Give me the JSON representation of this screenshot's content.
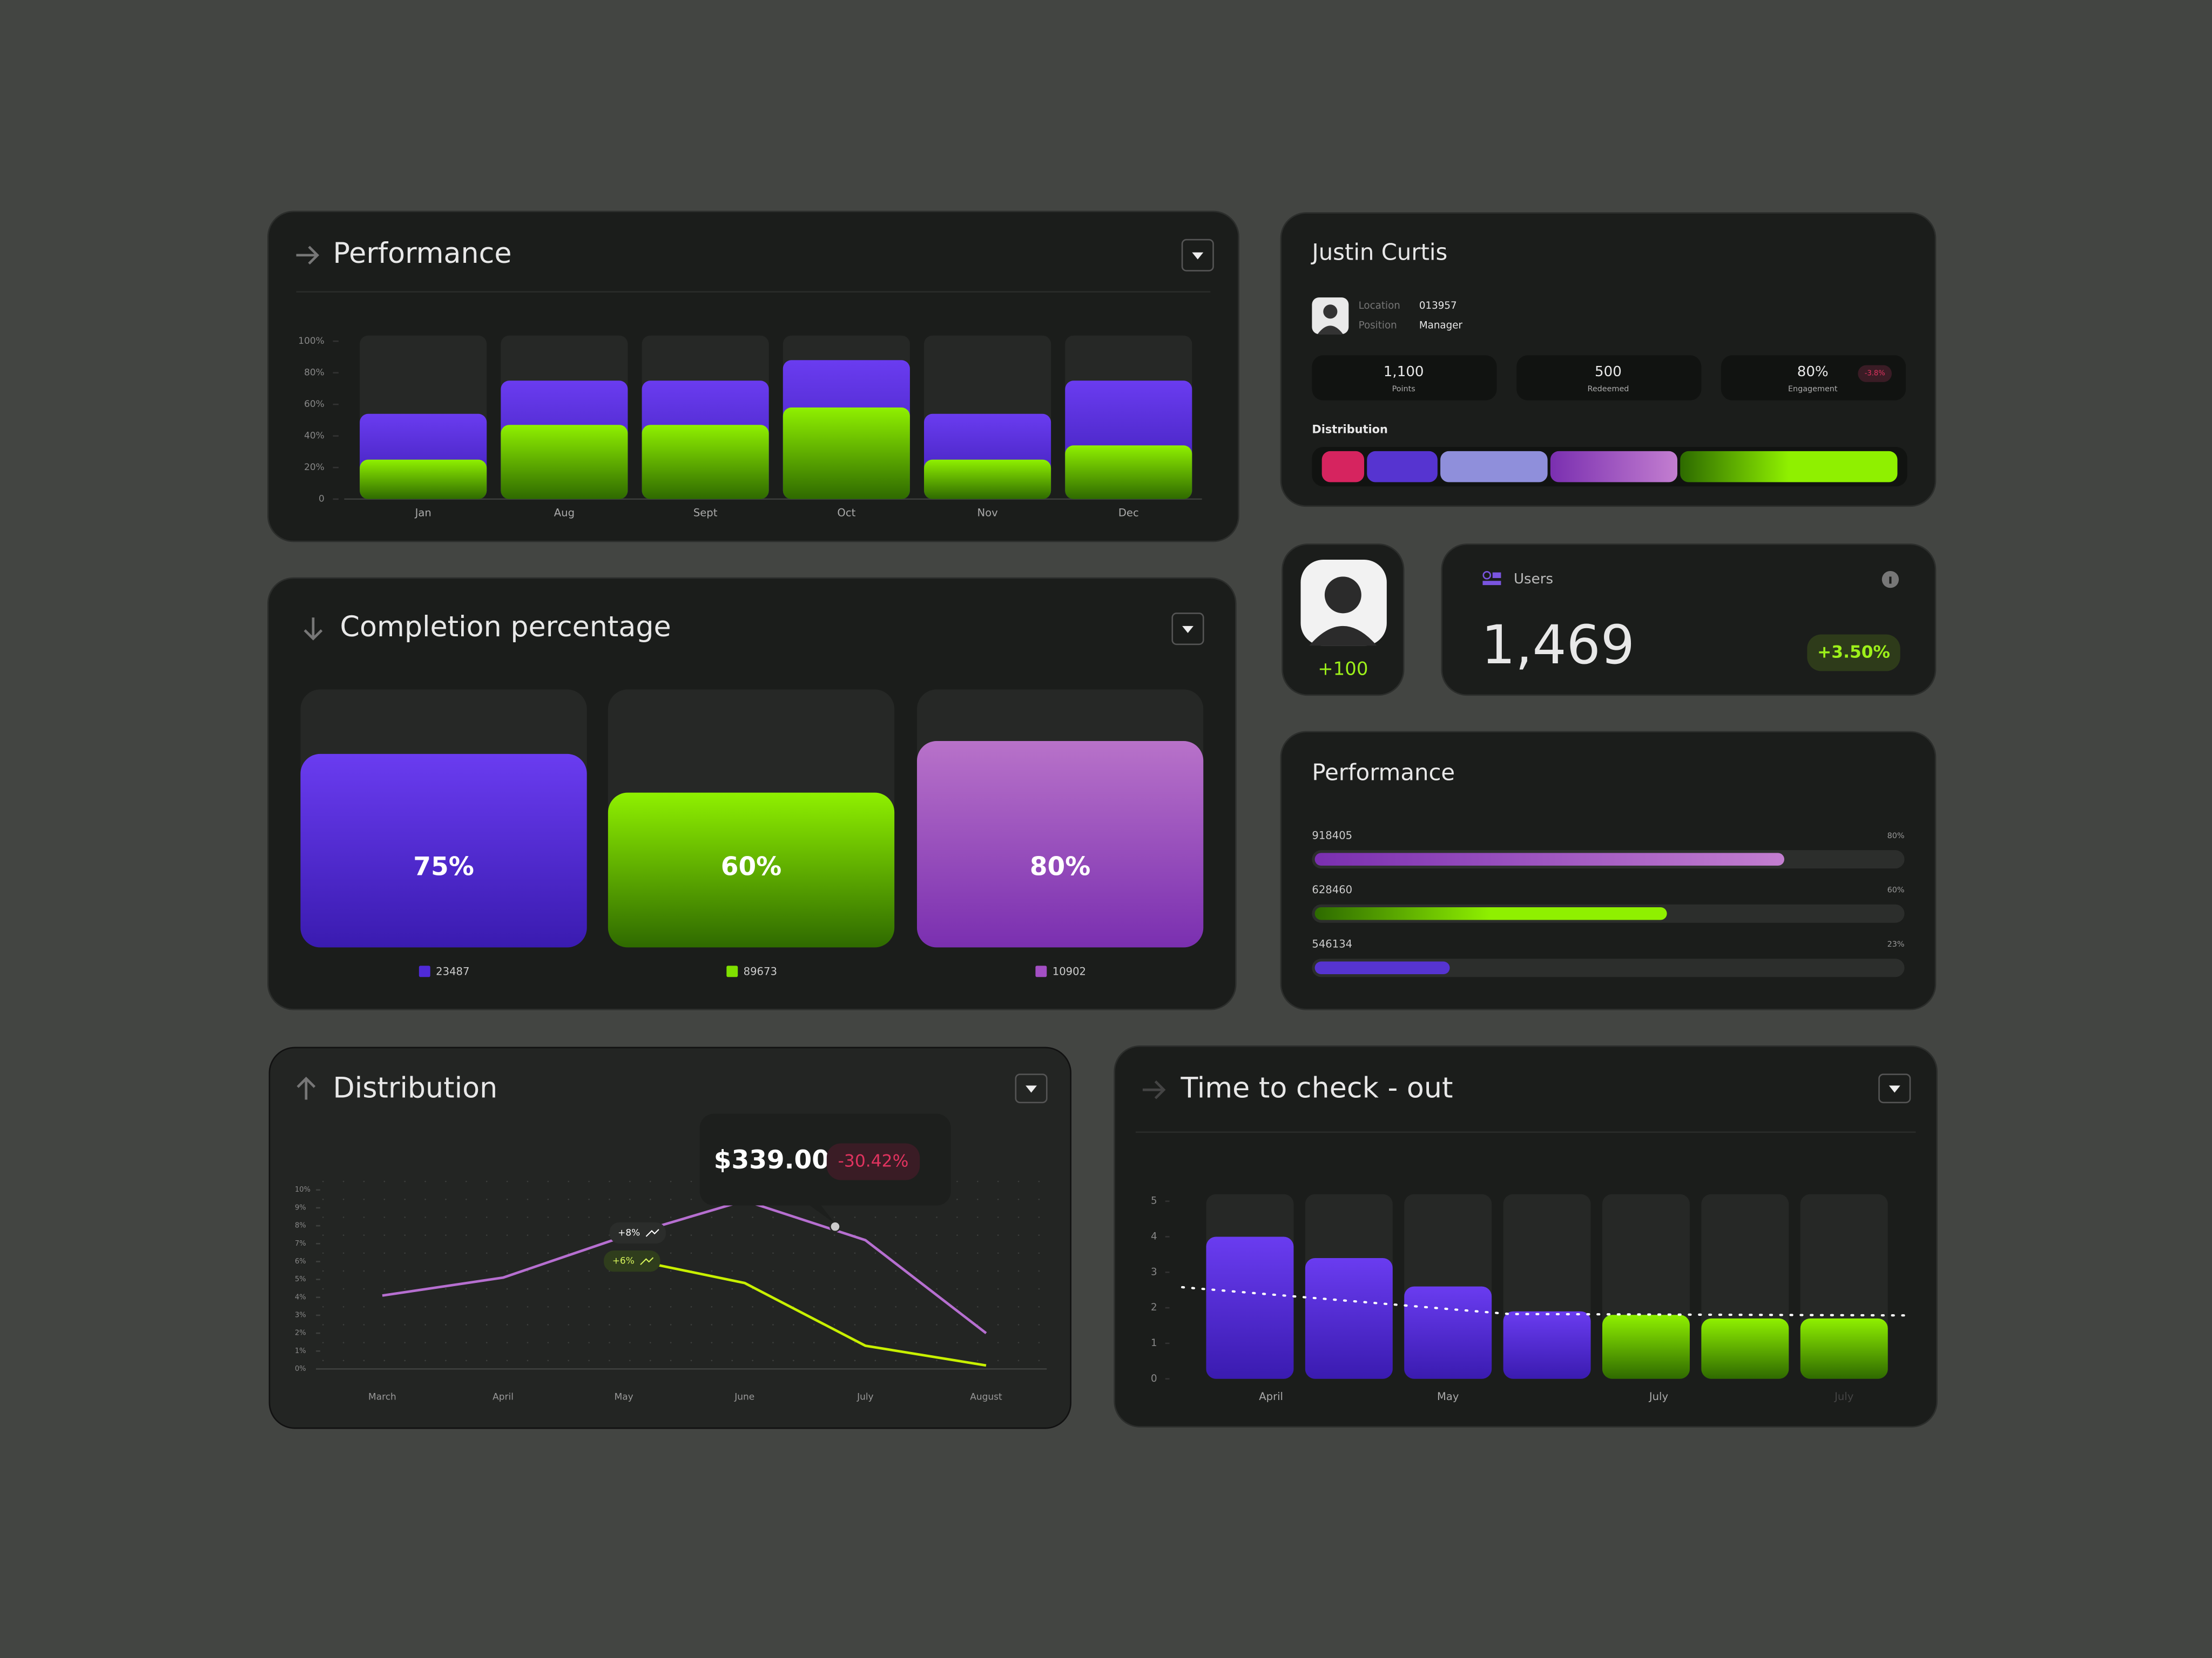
{
  "performance_chart": {
    "type": "bar",
    "title": "Performance",
    "categories": [
      "Jan",
      "Aug",
      "Sept",
      "Oct",
      "Nov",
      "Dec"
    ],
    "series": [
      {
        "color": "#5b37d6",
        "values": [
          54,
          75,
          75,
          88,
          54,
          75
        ]
      },
      {
        "color": "#7fe000",
        "values": [
          25,
          47,
          47,
          58,
          25,
          34
        ]
      }
    ],
    "ylim": [
      0,
      100
    ],
    "yticks": [
      0,
      {
        "value": 20,
        "label": "20%"
      },
      {
        "value": 40,
        "label": "40%"
      },
      {
        "value": 60,
        "label": "60%"
      },
      {
        "value": 80,
        "label": "80%"
      },
      {
        "value": 100,
        "label": "100%"
      }
    ]
  },
  "profile": {
    "name": "Justin Curtis",
    "fields": [
      {
        "label": "Location",
        "value": "013957"
      },
      {
        "label": "Position",
        "value": "Manager"
      }
    ],
    "stats": [
      {
        "value": "1,100",
        "label": "Points"
      },
      {
        "value": "500",
        "label": "Redeemed"
      },
      {
        "value": "80%",
        "label": "Engagement",
        "badge": "-3.8%"
      }
    ],
    "distribution_label": "Distribution"
  },
  "avatar_badge": "+100",
  "users": {
    "label": "Users",
    "value": "1,469",
    "change": "+3.50%"
  },
  "performance_list": {
    "title": "Performance",
    "rows": [
      {
        "label": "918405",
        "value": 80,
        "value_label": "80%",
        "color": "#a259d9"
      },
      {
        "label": "628460",
        "value": 60,
        "value_label": "60%",
        "color": "#7fe000"
      },
      {
        "label": "546134",
        "value": 23,
        "value_label": "23%",
        "color": "#5634d0"
      }
    ]
  },
  "completion": {
    "type": "bar",
    "title": "Completion percentage",
    "values": [
      75,
      60,
      80
    ],
    "value_labels": [
      "75%",
      "60%",
      "80%"
    ],
    "legend": [
      "23487",
      "89673",
      "10902"
    ],
    "colors": [
      "#4f2ad8",
      "#7fe000",
      "#a34fc4"
    ],
    "ylim": [
      0,
      100
    ]
  },
  "distribution": {
    "type": "line",
    "title": "Distribution",
    "categories": [
      "March",
      "April",
      "May",
      "June",
      "July",
      "August"
    ],
    "series": [
      {
        "color": "#b66fd0",
        "values": [
          4.1,
          5.1,
          7.4,
          9.4,
          7.2,
          2.0
        ]
      },
      {
        "color": "#c8f000",
        "values": [
          null,
          null,
          6.2,
          4.8,
          1.3,
          0.2
        ]
      }
    ],
    "ylim": [
      0,
      10
    ],
    "yticks": [
      {
        "value": 0,
        "label": "0%"
      },
      {
        "value": 1,
        "label": "1%"
      },
      {
        "value": 2,
        "label": "2%"
      },
      {
        "value": 3,
        "label": "3%"
      },
      {
        "value": 4,
        "label": "4%"
      },
      {
        "value": 5,
        "label": "5%"
      },
      {
        "value": 6,
        "label": "6%"
      },
      {
        "value": 7,
        "label": "7%"
      },
      {
        "value": 8,
        "label": "8%"
      },
      {
        "value": 9,
        "label": "9%"
      },
      {
        "value": 10,
        "label": "10%"
      }
    ],
    "tooltip": {
      "value": "$339.00",
      "change": "-30.42%"
    },
    "badges": [
      "+8%",
      "+6%"
    ]
  },
  "checkout": {
    "type": "bar",
    "title": "Time to check - out",
    "categories": [
      "April",
      null,
      "May",
      null,
      "July",
      null,
      "July"
    ],
    "values": [
      4.0,
      3.4,
      2.6,
      1.9,
      1.8,
      1.7,
      1.7
    ],
    "colors": [
      "#5b2cf0",
      "#5b2cf0",
      "#5b2cf0",
      "#5b2cf0",
      "#7fe000",
      "#7fe000",
      "#7fe000"
    ],
    "ylim": [
      0,
      5
    ],
    "yticks": [
      0,
      1,
      2,
      3,
      4,
      5
    ]
  }
}
